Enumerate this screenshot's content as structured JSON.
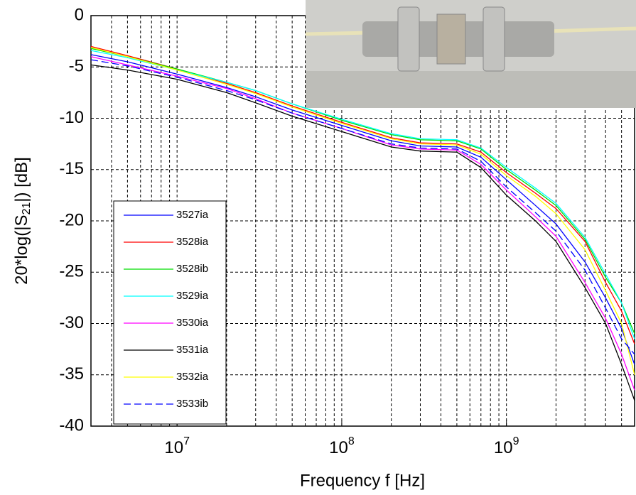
{
  "chart_data": {
    "type": "line",
    "xscale": "log",
    "x_label": "Frequency f [Hz]",
    "y_label": {
      "before": "20*log(|S",
      "sub": "21",
      "after": "|) [dB]"
    },
    "x": [
      3000000,
      5000000,
      10000000,
      20000000,
      30000000,
      50000000,
      100000000,
      200000000,
      300000000,
      500000000,
      700000000,
      1000000000,
      1500000000,
      2000000000,
      3000000000,
      4000000000,
      5000000000,
      6000000000
    ],
    "xlim": [
      3000000,
      6000000000
    ],
    "xticks": [
      {
        "value": 10000000,
        "label": "10",
        "exponent": "7"
      },
      {
        "value": 100000000,
        "label": "10",
        "exponent": "8"
      },
      {
        "value": 1000000000,
        "label": "10",
        "exponent": "9"
      }
    ],
    "xminorticks": [
      4000000,
      5000000,
      6000000,
      7000000,
      8000000,
      9000000,
      20000000,
      30000000,
      40000000,
      50000000,
      60000000,
      70000000,
      80000000,
      90000000,
      200000000,
      300000000,
      400000000,
      500000000,
      600000000,
      700000000,
      800000000,
      900000000,
      2000000000,
      3000000000,
      4000000000,
      5000000000
    ],
    "ylim": [
      -40,
      0
    ],
    "yticks": [
      0,
      -5,
      -10,
      -15,
      -20,
      -25,
      -30,
      -35,
      -40
    ],
    "grid": true,
    "legend": "lower left",
    "series": [
      {
        "name": "3527ia",
        "color": "#0000ff",
        "linestyle": "solid",
        "values": [
          -3.8,
          -4.5,
          -5.7,
          -7.0,
          -7.9,
          -9.2,
          -10.7,
          -12.2,
          -12.7,
          -12.8,
          -13.8,
          -16.0,
          -18.5,
          -20.3,
          -24.0,
          -27.5,
          -30.5,
          -34.0
        ]
      },
      {
        "name": "3528ia",
        "color": "#ff0000",
        "linestyle": "solid",
        "values": [
          -3.0,
          -3.9,
          -5.2,
          -6.6,
          -7.5,
          -8.8,
          -10.4,
          -11.9,
          -12.4,
          -12.5,
          -13.3,
          -15.3,
          -17.3,
          -18.8,
          -22.0,
          -26.0,
          -28.8,
          -32.0
        ]
      },
      {
        "name": "3528ib",
        "color": "#00dd00",
        "linestyle": "solid",
        "values": [
          -3.2,
          -4.0,
          -5.2,
          -6.5,
          -7.3,
          -8.6,
          -10.2,
          -11.6,
          -12.1,
          -12.2,
          -13.0,
          -15.0,
          -17.0,
          -18.5,
          -21.8,
          -25.5,
          -28.0,
          -31.0
        ]
      },
      {
        "name": "3529ia",
        "color": "#00ffff",
        "linestyle": "solid",
        "values": [
          -3.4,
          -4.1,
          -5.3,
          -6.5,
          -7.3,
          -8.6,
          -10.1,
          -11.5,
          -12.0,
          -12.1,
          -12.9,
          -14.8,
          -16.8,
          -18.3,
          -21.6,
          -25.2,
          -28.0,
          -31.5
        ]
      },
      {
        "name": "3530ia",
        "color": "#ff00ff",
        "linestyle": "solid",
        "values": [
          -4.0,
          -4.8,
          -5.9,
          -7.1,
          -8.1,
          -9.5,
          -11.0,
          -12.6,
          -13.0,
          -13.1,
          -14.5,
          -17.0,
          -19.6,
          -21.5,
          -26.0,
          -29.5,
          -33.0,
          -36.5
        ]
      },
      {
        "name": "3531ia",
        "color": "#000000",
        "linestyle": "solid",
        "values": [
          -4.8,
          -5.3,
          -6.2,
          -7.5,
          -8.5,
          -9.8,
          -11.3,
          -12.8,
          -13.2,
          -13.3,
          -14.8,
          -17.5,
          -20.0,
          -22.0,
          -26.5,
          -30.0,
          -34.0,
          -37.5
        ]
      },
      {
        "name": "3532ia",
        "color": "#ffff00",
        "linestyle": "solid",
        "values": [
          -3.1,
          -4.0,
          -5.3,
          -6.7,
          -7.6,
          -8.9,
          -10.5,
          -12.0,
          -12.5,
          -12.6,
          -13.5,
          -15.6,
          -17.6,
          -19.3,
          -22.8,
          -26.8,
          -30.0,
          -35.0
        ]
      },
      {
        "name": "3533ib",
        "color": "#0000ff",
        "linestyle": "dashed",
        "values": [
          -4.3,
          -4.9,
          -6.0,
          -7.3,
          -8.2,
          -9.5,
          -11.0,
          -12.5,
          -12.9,
          -13.0,
          -14.2,
          -16.7,
          -19.2,
          -21.0,
          -24.8,
          -28.5,
          -31.5,
          -33.0
        ]
      }
    ]
  }
}
